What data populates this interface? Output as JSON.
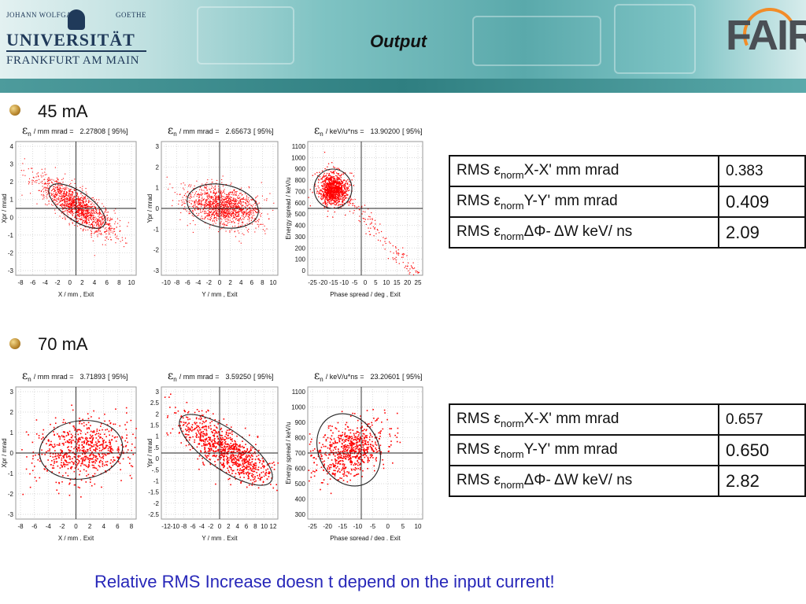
{
  "header": {
    "title": "Output",
    "university": {
      "line1_left": "JOHANN WOLFGANG",
      "line1_right": "GOETHE",
      "line2": "UNIVERSITÄT",
      "line3": "FRANKFURT AM MAIN"
    },
    "logo_text": "FAIR"
  },
  "sections": [
    {
      "label": "45 mA",
      "plots": [
        {
          "head_sym": "ε",
          "head_sub": "n",
          "head_unit": "/ mm mrad =",
          "head_value": "2.27808",
          "head_pct": "[ 95%]",
          "xlabel": "X / mm ,  Exit",
          "ylabel": "Xpr / mrad",
          "xticks": [
            "-8",
            "-6",
            "-4",
            "-2",
            "0",
            "2",
            "4",
            "6",
            "8",
            "10"
          ],
          "yticks": [
            "4",
            "3",
            "2",
            "1",
            "0",
            "-1",
            "-2",
            "-3"
          ]
        },
        {
          "head_sym": "ε",
          "head_sub": "n",
          "head_unit": "/ mm mrad =",
          "head_value": "2.65673",
          "head_pct": "[ 95%]",
          "xlabel": "Y / mm ,  Exit",
          "ylabel": "Ypr / mrad",
          "xticks": [
            "-10",
            "-8",
            "-6",
            "-4",
            "-2",
            "0",
            "2",
            "4",
            "6",
            "8",
            "10"
          ],
          "yticks": [
            "3",
            "2",
            "1",
            "0",
            "-1",
            "-2",
            "-3"
          ]
        },
        {
          "head_sym": "ε",
          "head_sub": "n",
          "head_unit": "/ keV/u*ns =",
          "head_value": "13.90200",
          "head_pct": "[ 95%]",
          "xlabel": "Phase spread / deg ,  Exit",
          "ylabel": "Energy spread / keV/u",
          "xticks": [
            "-25",
            "-20",
            "-15",
            "-10",
            "-5",
            "0",
            "5",
            "10",
            "15",
            "20",
            "25"
          ],
          "yticks": [
            "1100",
            "1000",
            "900",
            "800",
            "700",
            "600",
            "500",
            "400",
            "300",
            "200",
            "100",
            "0"
          ]
        }
      ],
      "table": [
        {
          "pre": "RMS ε",
          "sub": "norm",
          "post": "X-X'  mm mrad",
          "value": "0.383"
        },
        {
          "pre": "RMS ε",
          "sub": "norm",
          "post": "Y-Y'  mm mrad",
          "value": "0.409"
        },
        {
          "pre": "RMS ε",
          "sub": "norm",
          "post": "ΔΦ- ΔW keV/ ns",
          "value": "2.09"
        }
      ]
    },
    {
      "label": "70 mA",
      "plots": [
        {
          "head_sym": "ε",
          "head_sub": "n",
          "head_unit": "/ mm mrad =",
          "head_value": "3.71893",
          "head_pct": "[ 95%]",
          "xlabel": "X / mm ,  Exit",
          "ylabel": "Xpr / mrad",
          "xticks": [
            "-8",
            "-6",
            "-4",
            "-2",
            "0",
            "2",
            "4",
            "6",
            "8"
          ],
          "yticks": [
            "3",
            "2",
            "1",
            "0",
            "-1",
            "-2",
            "-3"
          ]
        },
        {
          "head_sym": "ε",
          "head_sub": "n",
          "head_unit": "/ mm mrad =",
          "head_value": "3.59250",
          "head_pct": "[ 95%]",
          "xlabel": "Y / mm ,  Exit",
          "ylabel": "Ypr / mrad",
          "xticks": [
            "-12",
            "-10",
            "-8",
            "-6",
            "-4",
            "-2",
            "0",
            "2",
            "4",
            "6",
            "8",
            "10",
            "12"
          ],
          "yticks": [
            "3",
            "2.5",
            "2",
            "1.5",
            "1",
            ".5",
            "0",
            "-.5",
            "-1",
            "-1.5",
            "-2",
            "-2.5"
          ]
        },
        {
          "head_sym": "ε",
          "head_sub": "n",
          "head_unit": "/ keV/u*ns =",
          "head_value": "23.20601",
          "head_pct": "[ 95%]",
          "xlabel": "Phase spread / deg ,  Exit",
          "ylabel": "Energy spread / keV/u",
          "xticks": [
            "-25",
            "-20",
            "-15",
            "-10",
            "-5",
            "0",
            "5",
            "10"
          ],
          "yticks": [
            "1100",
            "1000",
            "900",
            "800",
            "700",
            "600",
            "500",
            "400",
            "300"
          ]
        }
      ],
      "table": [
        {
          "pre": "RMS ε",
          "sub": "norm",
          "post": "X-X'  mm mrad",
          "value": "0.657"
        },
        {
          "pre": "RMS ε",
          "sub": "norm",
          "post": "Y-Y'  mm mrad",
          "value": "0.650"
        },
        {
          "pre": "RMS ε",
          "sub": "norm",
          "post": "ΔΦ- ΔW keV/ ns",
          "value": "2.82"
        }
      ]
    }
  ],
  "conclusion": "Relative RMS Increase doesn t depend on the input current!",
  "colors": {
    "points": "#ff0000",
    "ellipse": "#222222",
    "conclusion": "#2727b9"
  }
}
